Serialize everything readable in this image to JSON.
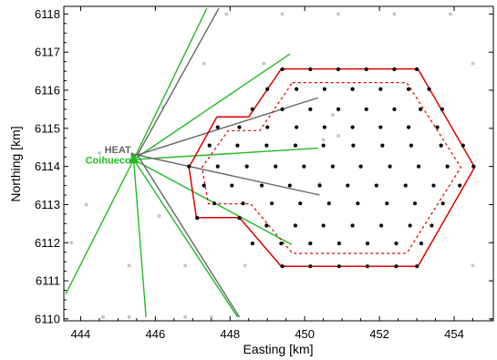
{
  "chart_data": {
    "type": "scatter",
    "title": "",
    "xlabel": "Easting [km]",
    "ylabel": "Northing [km]",
    "xlim": [
      443.55,
      455.05
    ],
    "ylim": [
      6109.95,
      6118.2
    ],
    "xticks": [
      444,
      446,
      448,
      450,
      452,
      454
    ],
    "yticks": [
      6110,
      6111,
      6112,
      6113,
      6114,
      6115,
      6116,
      6117,
      6118
    ],
    "grid": false,
    "colors": {
      "outer_hexagon": "#dd0000",
      "inner_hexagon": "#dd0000",
      "active_station": "#000000",
      "background_station": "#c8c8c8",
      "coihueco_fov": "#22bb22",
      "heat_fov": "#666666",
      "coihueco_marker": "#22bb22"
    },
    "annotations": [
      {
        "text": "HEAT",
        "x": 445.35,
        "y": 6114.35,
        "color": "#666666"
      },
      {
        "text": "Coihueco",
        "x": 445.35,
        "y": 6114.08,
        "color": "#22bb22"
      }
    ],
    "coihueco_site": {
      "x": 445.42,
      "y": 6114.18
    },
    "heat_site": {
      "x": 445.52,
      "y": 6114.3
    },
    "outer_hexagon": [
      [
        449.37,
        6116.56
      ],
      [
        453.03,
        6116.56
      ],
      [
        454.55,
        6113.98
      ],
      [
        453.03,
        6111.38
      ],
      [
        449.37,
        6111.38
      ],
      [
        448.25,
        6112.66
      ],
      [
        447.1,
        6112.66
      ],
      [
        446.9,
        6113.98
      ],
      [
        447.65,
        6115.3
      ],
      [
        448.5,
        6115.3
      ]
    ],
    "inner_hexagon": [
      [
        449.67,
        6116.2
      ],
      [
        452.73,
        6116.2
      ],
      [
        454.18,
        6113.98
      ],
      [
        452.73,
        6111.72
      ],
      [
        449.67,
        6111.72
      ],
      [
        448.55,
        6113.02
      ],
      [
        447.42,
        6113.02
      ],
      [
        447.25,
        6113.98
      ],
      [
        447.95,
        6114.94
      ],
      [
        448.8,
        6114.94
      ]
    ],
    "coihueco_fov": [
      [
        447.38,
        6118.15
      ],
      [
        449.6,
        6116.95
      ],
      [
        450.35,
        6114.48
      ],
      [
        449.65,
        6111.95
      ],
      [
        448.2,
        6110.05
      ],
      [
        445.75,
        6110.05
      ],
      [
        443.6,
        6110.65
      ]
    ],
    "heat_fov": [
      [
        447.7,
        6118.15
      ],
      [
        450.35,
        6115.8
      ],
      [
        450.4,
        6113.25
      ],
      [
        448.25,
        6110.05
      ]
    ],
    "active_stations": [
      [
        449.4,
        6116.55
      ],
      [
        450.15,
        6116.55
      ],
      [
        450.9,
        6116.55
      ],
      [
        451.65,
        6116.55
      ],
      [
        452.4,
        6116.55
      ],
      [
        453.0,
        6116.55
      ],
      [
        449.0,
        6116.03
      ],
      [
        449.78,
        6116.03
      ],
      [
        450.53,
        6116.03
      ],
      [
        451.28,
        6116.03
      ],
      [
        452.03,
        6116.03
      ],
      [
        452.78,
        6116.03
      ],
      [
        453.33,
        6116.03
      ],
      [
        448.6,
        6115.5
      ],
      [
        449.4,
        6115.5
      ],
      [
        450.15,
        6115.5
      ],
      [
        450.9,
        6115.5
      ],
      [
        451.65,
        6115.5
      ],
      [
        452.4,
        6115.5
      ],
      [
        453.1,
        6115.5
      ],
      [
        453.68,
        6115.5
      ],
      [
        447.67,
        6115.03
      ],
      [
        448.25,
        6115.03
      ],
      [
        449.0,
        6115.03
      ],
      [
        449.78,
        6115.03
      ],
      [
        450.53,
        6115.03
      ],
      [
        451.28,
        6115.03
      ],
      [
        452.03,
        6115.03
      ],
      [
        452.78,
        6115.03
      ],
      [
        453.55,
        6115.03
      ],
      [
        447.45,
        6114.55
      ],
      [
        448.2,
        6114.55
      ],
      [
        448.98,
        6114.55
      ],
      [
        449.75,
        6114.55
      ],
      [
        450.5,
        6114.55
      ],
      [
        451.3,
        6114.55
      ],
      [
        452.08,
        6114.55
      ],
      [
        452.85,
        6114.55
      ],
      [
        453.65,
        6114.55
      ],
      [
        454.24,
        6114.55
      ],
      [
        446.9,
        6114.0
      ],
      [
        447.67,
        6114.0
      ],
      [
        448.45,
        6114.0
      ],
      [
        449.22,
        6114.0
      ],
      [
        449.98,
        6114.0
      ],
      [
        450.75,
        6114.0
      ],
      [
        451.5,
        6114.0
      ],
      [
        452.28,
        6114.0
      ],
      [
        453.05,
        6114.0
      ],
      [
        453.82,
        6114.0
      ],
      [
        454.52,
        6114.0
      ],
      [
        447.3,
        6113.5
      ],
      [
        448.05,
        6113.5
      ],
      [
        448.85,
        6113.5
      ],
      [
        449.6,
        6113.5
      ],
      [
        450.4,
        6113.5
      ],
      [
        451.15,
        6113.5
      ],
      [
        451.92,
        6113.5
      ],
      [
        452.7,
        6113.5
      ],
      [
        453.45,
        6113.5
      ],
      [
        454.15,
        6113.5
      ],
      [
        447.58,
        6113.03
      ],
      [
        448.35,
        6113.03
      ],
      [
        449.12,
        6113.03
      ],
      [
        449.88,
        6113.03
      ],
      [
        450.65,
        6113.03
      ],
      [
        451.42,
        6113.03
      ],
      [
        452.2,
        6113.03
      ],
      [
        452.95,
        6113.03
      ],
      [
        453.7,
        6113.03
      ],
      [
        447.12,
        6112.65
      ],
      [
        448.25,
        6112.65
      ],
      [
        448.98,
        6112.45
      ],
      [
        449.75,
        6112.45
      ],
      [
        450.5,
        6112.45
      ],
      [
        451.28,
        6112.45
      ],
      [
        452.05,
        6112.45
      ],
      [
        452.82,
        6112.45
      ],
      [
        453.4,
        6112.45
      ],
      [
        448.6,
        6111.98
      ],
      [
        449.37,
        6111.98
      ],
      [
        450.15,
        6111.98
      ],
      [
        450.92,
        6111.98
      ],
      [
        451.68,
        6111.98
      ],
      [
        452.45,
        6111.98
      ],
      [
        453.12,
        6111.98
      ],
      [
        449.4,
        6111.38
      ],
      [
        450.15,
        6111.38
      ],
      [
        450.92,
        6111.38
      ],
      [
        451.68,
        6111.38
      ],
      [
        452.45,
        6111.38
      ],
      [
        453.0,
        6111.38
      ]
    ],
    "background_stations": [
      [
        444.6,
        6110.05
      ],
      [
        445.3,
        6110.05
      ],
      [
        446.8,
        6110.05
      ],
      [
        447.5,
        6110.05
      ],
      [
        447.9,
        6118.0
      ],
      [
        449.4,
        6118.0
      ],
      [
        450.9,
        6118.0
      ],
      [
        452.4,
        6118.0
      ],
      [
        453.9,
        6118.0
      ],
      [
        447.3,
        6116.7
      ],
      [
        448.9,
        6116.7
      ],
      [
        454.5,
        6116.7
      ],
      [
        446.2,
        6115.55
      ],
      [
        444.15,
        6113.0
      ],
      [
        443.75,
        6112.0
      ],
      [
        444.5,
        6114.35
      ],
      [
        446.1,
        6112.7
      ],
      [
        446.8,
        6111.4
      ],
      [
        448.4,
        6111.4
      ],
      [
        454.5,
        6111.4
      ],
      [
        445.3,
        6111.4
      ],
      [
        450.75,
        6115.35
      ],
      [
        450.5,
        6114.7
      ],
      [
        450.9,
        6114.8
      ],
      [
        450.4,
        6113.55
      ]
    ]
  }
}
